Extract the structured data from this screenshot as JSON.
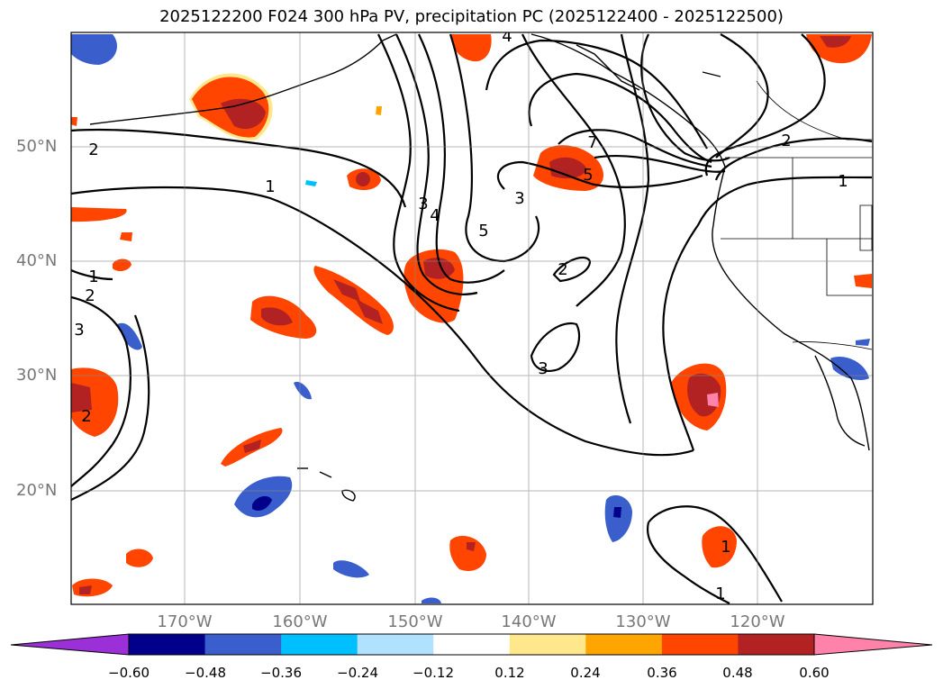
{
  "title": "2025122200 F024 300 hPa PV, precipitation PC (2025122400 - 2025122500)",
  "map": {
    "lat_labels": [
      "50°N",
      "40°N",
      "30°N",
      "20°N"
    ],
    "lon_labels": [
      "170°W",
      "160°W",
      "150°W",
      "140°W",
      "130°W",
      "120°W"
    ],
    "contour_labels": [
      "2",
      "1",
      "4",
      "7",
      "5",
      "2",
      "1",
      "3",
      "4",
      "3",
      "5",
      "2",
      "1",
      "2",
      "3",
      "2",
      "3",
      "1",
      "1"
    ],
    "contour_color": "#000000",
    "gridlines": true
  },
  "colorbar": {
    "ticks": [
      "−0.60",
      "−0.48",
      "−0.36",
      "−0.24",
      "−0.12",
      "0.12",
      "0.24",
      "0.36",
      "0.48",
      "0.60"
    ],
    "colors": [
      "#9b30d9",
      "#00008b",
      "#3a5fcd",
      "#00bfff",
      "#b0e2ff",
      "#ffffff",
      "#ffe88c",
      "#ffa500",
      "#ff4500",
      "#b22222",
      "#ff82ab"
    ]
  }
}
